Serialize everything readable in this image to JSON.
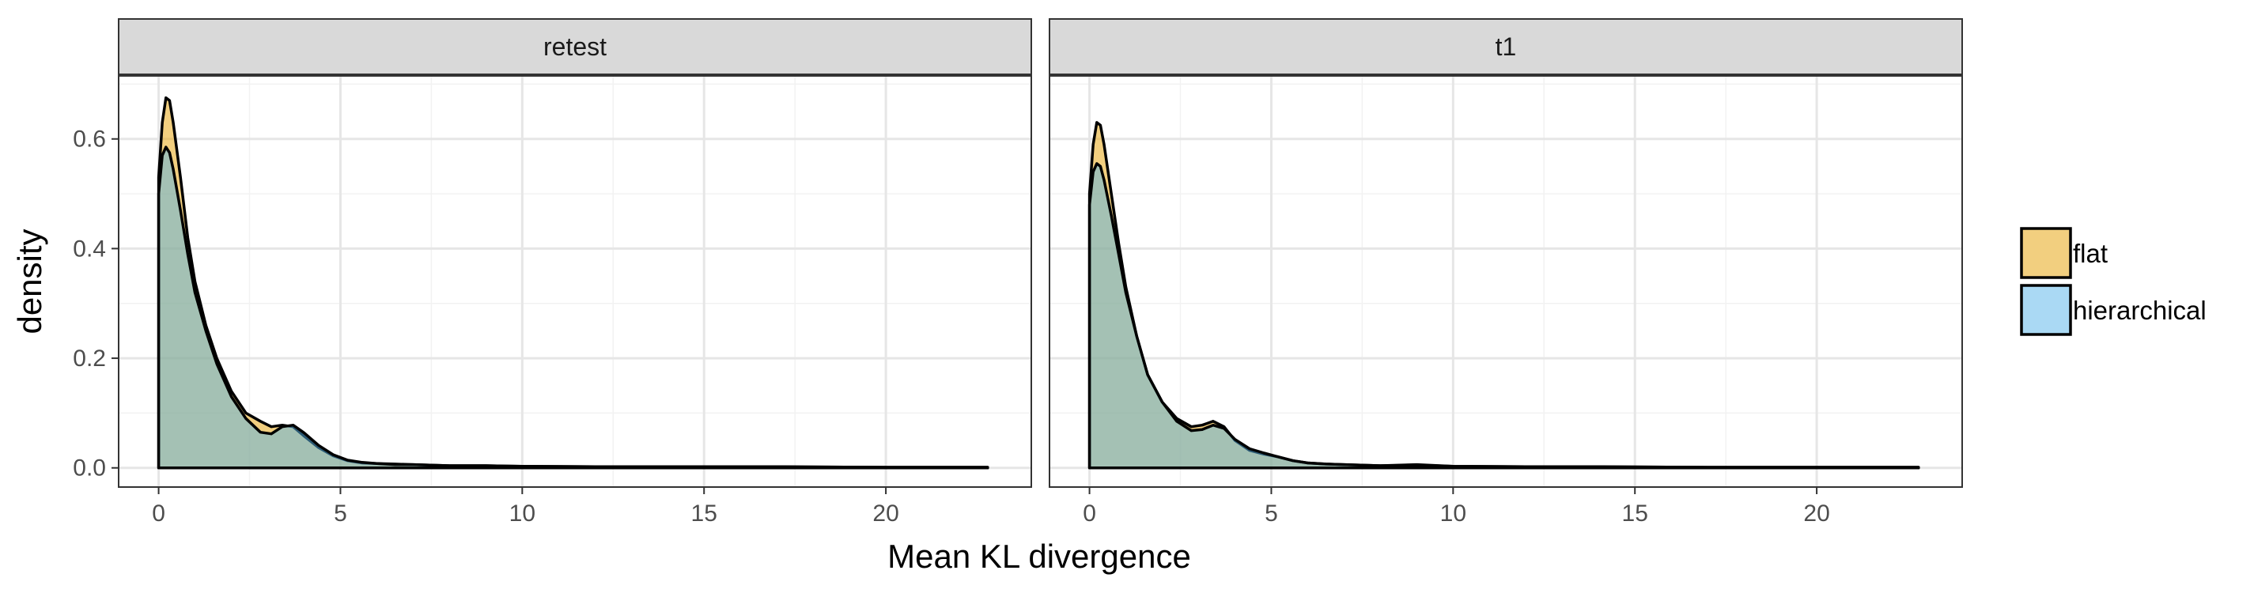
{
  "chart_data": {
    "type": "area",
    "subtype": "density",
    "xlabel": "Mean KL divergence",
    "ylabel": "density",
    "xlim": [
      -1.1,
      24.0
    ],
    "ylim": [
      -0.035,
      0.715
    ],
    "x_ticks": [
      0,
      5,
      10,
      15,
      20
    ],
    "x_tick_labels": [
      "0",
      "5",
      "10",
      "15",
      "20"
    ],
    "y_ticks": [
      0,
      0.2,
      0.4,
      0.6
    ],
    "y_tick_labels": [
      "0.0",
      "0.2",
      "0.4",
      "0.6"
    ],
    "grid": true,
    "legend_position": "right",
    "colors": {
      "flat": "#E69F00",
      "hierarchical": "#56B4E9",
      "panel_strip": "#D9D9D9",
      "outline": "#000000"
    },
    "fill_opacity": 0.5,
    "legend": [
      {
        "label": "flat",
        "color": "#E69F00"
      },
      {
        "label": "hierarchical",
        "color": "#56B4E9"
      }
    ],
    "panels": [
      {
        "strip": "retest",
        "series": [
          {
            "name": "flat",
            "x": [
              0,
              0.1,
              0.2,
              0.3,
              0.4,
              0.6,
              0.8,
              1.0,
              1.3,
              1.6,
              2.0,
              2.4,
              2.8,
              3.1,
              3.4,
              3.7,
              4.0,
              4.4,
              4.8,
              5.2,
              5.6,
              6.0,
              6.5,
              7.0,
              8.0,
              9.0,
              10.0,
              12.0,
              14.0,
              17.0,
              20.0,
              22.8
            ],
            "y": [
              0.53,
              0.63,
              0.675,
              0.67,
              0.63,
              0.53,
              0.42,
              0.34,
              0.26,
              0.2,
              0.14,
              0.1,
              0.085,
              0.075,
              0.078,
              0.075,
              0.058,
              0.037,
              0.022,
              0.013,
              0.009,
              0.008,
              0.007,
              0.006,
              0.004,
              0.004,
              0.003,
              0.002,
              0.002,
              0.002,
              0.001,
              0.001
            ]
          },
          {
            "name": "hierarchical",
            "x": [
              0,
              0.1,
              0.2,
              0.3,
              0.4,
              0.6,
              0.8,
              1.0,
              1.3,
              1.6,
              2.0,
              2.4,
              2.8,
              3.1,
              3.4,
              3.7,
              4.0,
              4.4,
              4.8,
              5.2,
              5.6,
              6.0,
              6.5,
              7.0,
              8.0,
              9.0,
              10.0,
              12.0,
              14.0,
              17.0,
              20.0,
              22.8
            ],
            "y": [
              0.5,
              0.57,
              0.585,
              0.575,
              0.545,
              0.47,
              0.39,
              0.32,
              0.25,
              0.19,
              0.13,
              0.09,
              0.065,
              0.062,
              0.075,
              0.078,
              0.064,
              0.041,
              0.024,
              0.014,
              0.01,
              0.008,
              0.006,
              0.006,
              0.004,
              0.004,
              0.003,
              0.002,
              0.002,
              0.002,
              0.001,
              0.001
            ]
          }
        ]
      },
      {
        "strip": "t1",
        "series": [
          {
            "name": "flat",
            "x": [
              0,
              0.1,
              0.2,
              0.3,
              0.4,
              0.6,
              0.8,
              1.0,
              1.3,
              1.6,
              2.0,
              2.4,
              2.8,
              3.1,
              3.4,
              3.7,
              4.0,
              4.4,
              4.8,
              5.2,
              5.6,
              6.0,
              6.5,
              7.0,
              8.0,
              9.0,
              10.0,
              12.0,
              14.0,
              17.0,
              20.0,
              22.8
            ],
            "y": [
              0.5,
              0.59,
              0.63,
              0.625,
              0.59,
              0.5,
              0.41,
              0.33,
              0.24,
              0.17,
              0.12,
              0.09,
              0.075,
              0.078,
              0.085,
              0.075,
              0.05,
              0.032,
              0.025,
              0.02,
              0.013,
              0.009,
              0.007,
              0.006,
              0.004,
              0.006,
              0.003,
              0.002,
              0.002,
              0.001,
              0.001,
              0.001
            ]
          },
          {
            "name": "hierarchical",
            "x": [
              0,
              0.1,
              0.2,
              0.3,
              0.4,
              0.6,
              0.8,
              1.0,
              1.3,
              1.6,
              2.0,
              2.4,
              2.8,
              3.1,
              3.4,
              3.7,
              4.0,
              4.4,
              4.8,
              5.2,
              5.6,
              6.0,
              6.5,
              7.0,
              8.0,
              9.0,
              10.0,
              12.0,
              14.0,
              17.0,
              20.0,
              22.8
            ],
            "y": [
              0.48,
              0.54,
              0.555,
              0.55,
              0.525,
              0.46,
              0.39,
              0.32,
              0.24,
              0.17,
              0.12,
              0.085,
              0.068,
              0.07,
              0.078,
              0.072,
              0.052,
              0.035,
              0.027,
              0.02,
              0.013,
              0.009,
              0.007,
              0.006,
              0.004,
              0.005,
              0.003,
              0.002,
              0.002,
              0.001,
              0.001,
              0.001
            ]
          }
        ]
      }
    ]
  }
}
